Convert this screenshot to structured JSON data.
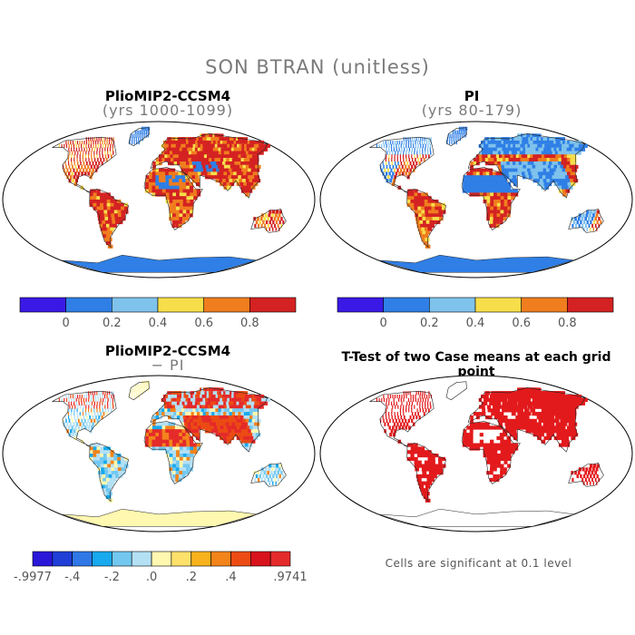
{
  "title": "SON BTRAN (unitless)",
  "panels": [
    {
      "name": "top-left",
      "title": "PlioMIP2-CCSM4",
      "subtitle": "(yrs 1000-1099)"
    },
    {
      "name": "top-right",
      "title": "PI",
      "subtitle": "(yrs 80-179)"
    },
    {
      "name": "bottom-left",
      "title": "PlioMIP2-CCSM4",
      "subtitle": "− PI"
    },
    {
      "name": "bottom-right",
      "title": "T-Test of two Case means at each grid point",
      "subtitle": ""
    }
  ],
  "colorbar_top": {
    "colors": [
      "#3a19e6",
      "#2f7fe6",
      "#7fc2ec",
      "#f7de4a",
      "#f07d1e",
      "#d42222"
    ],
    "labels": [
      "0",
      "0.2",
      "0.4",
      "0.6",
      "0.8"
    ]
  },
  "colorbar_diff": {
    "colors": [
      "#2a17d8",
      "#1f3fd6",
      "#2f78e6",
      "#18a9ee",
      "#73c8f0",
      "#b4e0f4",
      "#fff8b0",
      "#fde16b",
      "#f8b21d",
      "#f3841a",
      "#ec4b14",
      "#d8131b",
      "#e52a2a"
    ],
    "labels": [
      "-.9977",
      "-.4",
      "-.2",
      ".0",
      ".2",
      ".4",
      ".9741"
    ]
  },
  "note": "Cells are significant at 0.1 level"
}
